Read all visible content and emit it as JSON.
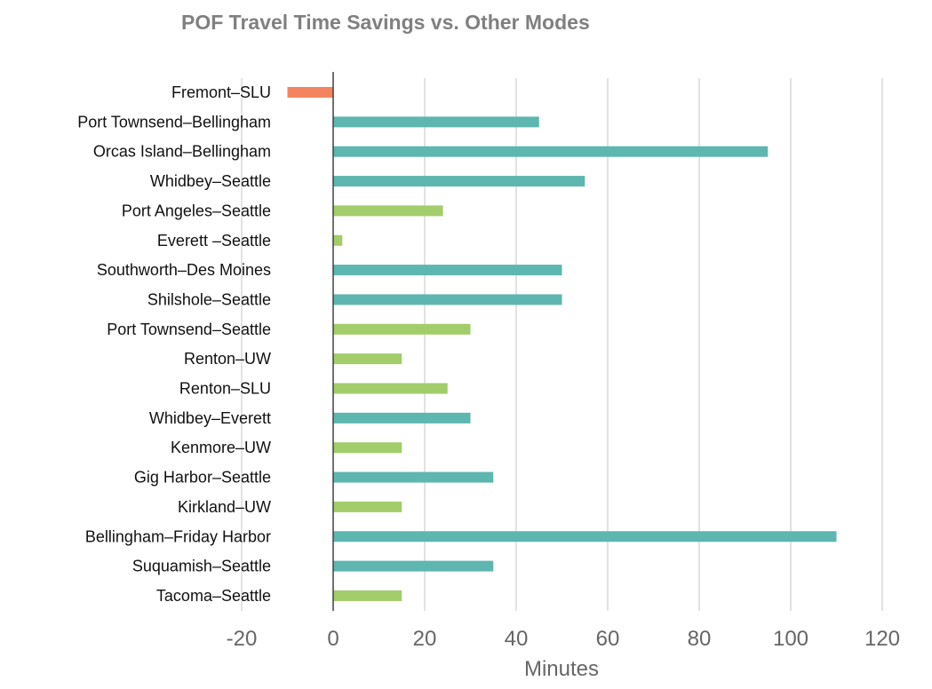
{
  "chart_data": {
    "type": "bar",
    "orientation": "horizontal",
    "title": "POF Travel Time Savings vs. Other Modes",
    "xlabel": "Minutes",
    "ylabel": "",
    "xlim": [
      -20,
      120
    ],
    "xticks": [
      -20,
      0,
      20,
      40,
      60,
      80,
      100,
      120
    ],
    "grid": true,
    "legend": "none",
    "categories": [
      "Fremont–SLU",
      "Port Townsend–Bellingham",
      "Orcas Island–Bellingham",
      "Whidbey–Seattle",
      "Port Angeles–Seattle",
      "Everett –Seattle",
      "Southworth–Des Moines",
      "Shilshole–Seattle",
      "Port Townsend–Seattle",
      "Renton–UW",
      "Renton–SLU",
      "Whidbey–Everett",
      "Kenmore–UW",
      "Gig Harbor–Seattle",
      "Kirkland–UW",
      "Bellingham–Friday Harbor",
      "Suquamish–Seattle",
      "Tacoma–Seattle"
    ],
    "values": [
      -10,
      45,
      95,
      55,
      24,
      2,
      50,
      50,
      30,
      15,
      25,
      30,
      15,
      35,
      15,
      110,
      35,
      15
    ],
    "bar_color_keys": [
      "orange",
      "teal",
      "teal",
      "teal",
      "green",
      "green",
      "teal",
      "teal",
      "green",
      "green",
      "green",
      "teal",
      "green",
      "teal",
      "green",
      "teal",
      "teal",
      "green"
    ],
    "colors": {
      "orange": "#f4845f",
      "teal": "#5eb6b0",
      "green": "#a3cd6b",
      "grid": "#d9d9d9",
      "zero_axis": "#404040"
    }
  }
}
